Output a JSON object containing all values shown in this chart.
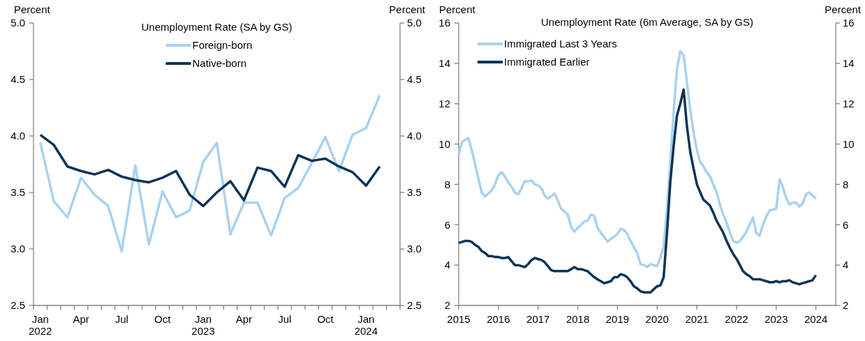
{
  "chart_data": [
    {
      "type": "line",
      "title": "Unemployment Rate (SA by GS)",
      "ylabel": "Percent",
      "y2label": "Percent",
      "legend": "top",
      "grid": false,
      "marker": "none",
      "line_style": "solid",
      "categories": [
        "Jan\n2022",
        null,
        null,
        "Apr",
        null,
        null,
        "Jul",
        null,
        null,
        "Oct",
        null,
        null,
        "Jan\n2023",
        null,
        null,
        "Apr",
        null,
        null,
        "Jul",
        null,
        null,
        "Oct",
        null,
        null,
        "Jan\n2024",
        null,
        null
      ],
      "series": [
        {
          "name": "Foreign-born",
          "color": "#a9d1f0",
          "values": [
            3.94,
            3.42,
            3.28,
            3.63,
            3.48,
            3.38,
            2.98,
            3.74,
            3.04,
            3.51,
            3.28,
            3.34,
            3.77,
            3.94,
            3.13,
            3.41,
            3.41,
            3.12,
            3.45,
            3.54,
            3.76,
            3.99,
            3.69,
            4.01,
            4.07,
            4.36,
            null
          ]
        },
        {
          "name": "Native-born",
          "color": "#0b3358",
          "values": [
            4.01,
            3.92,
            3.73,
            3.69,
            3.66,
            3.7,
            3.64,
            3.61,
            3.59,
            3.63,
            3.69,
            3.48,
            3.38,
            3.5,
            3.6,
            3.43,
            3.72,
            3.69,
            3.55,
            3.83,
            3.78,
            3.8,
            3.73,
            3.68,
            3.56,
            3.73,
            null
          ]
        }
      ],
      "ylim": [
        2.5,
        5.0
      ],
      "yticks": [
        {
          "value": 2.5,
          "label": "2.5"
        },
        {
          "value": 3,
          "label": "3.0"
        },
        {
          "value": 3.5,
          "label": "3.5"
        },
        {
          "value": 4,
          "label": "4.0"
        },
        {
          "value": 4.5,
          "label": "4.5"
        },
        {
          "value": 5,
          "label": "5.0"
        }
      ],
      "y2lim": [
        2.5,
        5.0
      ],
      "y2ticks": [
        {
          "value": 2.5,
          "label": "2.5"
        },
        {
          "value": 3,
          "label": "3.0"
        },
        {
          "value": 3.5,
          "label": "3.5"
        },
        {
          "value": 4,
          "label": "4.0"
        },
        {
          "value": 4.5,
          "label": "4.5"
        },
        {
          "value": 5,
          "label": "5.0"
        }
      ]
    },
    {
      "type": "line",
      "title": "Unemployment Rate (6m Average, SA by GS)",
      "ylabel": "Percent",
      "y2label": "Percent",
      "legend": "top left",
      "grid": false,
      "marker": "none",
      "line_style": "solid",
      "x": [
        "2015-01",
        "2015-02",
        "2015-03",
        "2015-04",
        "2015-05",
        "2015-06",
        "2015-07",
        "2015-08",
        "2015-09",
        "2015-10",
        "2015-11",
        "2015-12",
        "2016-01",
        "2016-02",
        "2016-03",
        "2016-04",
        "2016-05",
        "2016-06",
        "2016-07",
        "2016-08",
        "2016-09",
        "2016-10",
        "2016-11",
        "2016-12",
        "2017-01",
        "2017-02",
        "2017-03",
        "2017-04",
        "2017-05",
        "2017-06",
        "2017-07",
        "2017-08",
        "2017-09",
        "2017-10",
        "2017-11",
        "2017-12",
        "2018-01",
        "2018-02",
        "2018-03",
        "2018-04",
        "2018-05",
        "2018-06",
        "2018-07",
        "2018-08",
        "2018-09",
        "2018-10",
        "2018-11",
        "2018-12",
        "2019-01",
        "2019-02",
        "2019-03",
        "2019-04",
        "2019-05",
        "2019-06",
        "2019-07",
        "2019-08",
        "2019-09",
        "2019-10",
        "2019-11",
        "2019-12",
        "2020-01",
        "2020-02",
        "2020-03",
        "2020-04",
        "2020-05",
        "2020-06",
        "2020-07",
        "2020-08",
        "2020-09",
        "2020-10",
        "2020-11",
        "2020-12",
        "2021-01",
        "2021-02",
        "2021-03",
        "2021-04",
        "2021-05",
        "2021-06",
        "2021-07",
        "2021-08",
        "2021-09",
        "2021-10",
        "2021-11",
        "2021-12",
        "2022-01",
        "2022-02",
        "2022-03",
        "2022-04",
        "2022-05",
        "2022-06",
        "2022-07",
        "2022-08",
        "2022-09",
        "2022-10",
        "2022-11",
        "2022-12",
        "2023-01",
        "2023-02",
        "2023-03",
        "2023-04",
        "2023-05",
        "2023-06",
        "2023-07",
        "2023-08",
        "2023-09",
        "2023-10",
        "2023-11",
        "2023-12",
        "2024-01"
      ],
      "series": [
        {
          "name": "Immigrated Last 3 Years",
          "color": "#a9d1f0",
          "values": [
            9.5,
            10.1,
            10.2,
            10.3,
            9.7,
            9.0,
            8.3,
            7.6,
            7.4,
            7.55,
            7.7,
            8.0,
            8.45,
            8.6,
            8.4,
            8.1,
            7.9,
            7.6,
            7.5,
            7.8,
            8.15,
            8.15,
            8.2,
            8.0,
            7.95,
            7.8,
            7.45,
            7.3,
            7.4,
            7.55,
            7.2,
            6.8,
            6.65,
            6.5,
            5.9,
            5.65,
            5.85,
            6.0,
            6.15,
            6.2,
            6.5,
            6.45,
            5.85,
            5.6,
            5.4,
            5.15,
            5.3,
            5.4,
            5.55,
            5.8,
            5.75,
            5.55,
            5.2,
            4.9,
            4.6,
            4.05,
            4.0,
            3.9,
            4.05,
            4.0,
            3.95,
            4.4,
            4.9,
            6.8,
            9.1,
            11.6,
            13.7,
            14.6,
            14.4,
            13.1,
            11.7,
            10.6,
            9.7,
            9.1,
            8.9,
            8.6,
            8.4,
            8.0,
            7.6,
            7.0,
            6.5,
            6.1,
            5.6,
            5.2,
            5.1,
            5.2,
            5.4,
            5.65,
            6.0,
            6.35,
            5.6,
            5.45,
            6.0,
            6.4,
            6.7,
            6.75,
            6.8,
            8.25,
            7.9,
            7.35,
            7.0,
            7.1,
            7.1,
            6.9,
            7.05,
            7.5,
            7.6,
            7.45,
            7.3
          ]
        },
        {
          "name": "Immigrated Earlier",
          "color": "#0b3358",
          "values": [
            5.1,
            5.15,
            5.2,
            5.2,
            5.15,
            5.0,
            4.9,
            4.7,
            4.6,
            4.45,
            4.45,
            4.4,
            4.4,
            4.35,
            4.35,
            4.4,
            4.2,
            4.0,
            4.0,
            3.95,
            3.9,
            4.05,
            4.25,
            4.35,
            4.3,
            4.25,
            4.15,
            3.95,
            3.75,
            3.7,
            3.7,
            3.7,
            3.7,
            3.7,
            3.8,
            3.9,
            3.8,
            3.8,
            3.75,
            3.7,
            3.55,
            3.4,
            3.3,
            3.2,
            3.1,
            3.15,
            3.2,
            3.4,
            3.4,
            3.55,
            3.5,
            3.4,
            3.2,
            2.95,
            2.85,
            2.7,
            2.65,
            2.65,
            2.65,
            2.8,
            2.95,
            3.0,
            3.4,
            5.6,
            8.1,
            9.9,
            11.4,
            12.0,
            12.7,
            10.9,
            9.6,
            8.8,
            8.0,
            7.6,
            7.25,
            7.1,
            6.95,
            6.6,
            6.2,
            5.9,
            5.6,
            5.2,
            4.85,
            4.55,
            4.3,
            4.0,
            3.7,
            3.55,
            3.45,
            3.3,
            3.3,
            3.3,
            3.25,
            3.2,
            3.15,
            3.15,
            3.2,
            3.15,
            3.2,
            3.2,
            3.25,
            3.15,
            3.1,
            3.05,
            3.1,
            3.15,
            3.2,
            3.25,
            3.5
          ]
        }
      ],
      "xlim": [
        "2015-01-01",
        "2024-07-01"
      ],
      "xticks": [
        {
          "value": "2015-01-01",
          "label": "2015"
        },
        {
          "value": "2016-01-01",
          "label": "2016"
        },
        {
          "value": "2017-01-01",
          "label": "2017"
        },
        {
          "value": "2018-01-01",
          "label": "2018"
        },
        {
          "value": "2019-01-01",
          "label": "2019"
        },
        {
          "value": "2020-01-01",
          "label": "2020"
        },
        {
          "value": "2021-01-01",
          "label": "2021"
        },
        {
          "value": "2022-01-01",
          "label": "2022"
        },
        {
          "value": "2023-01-01",
          "label": "2023"
        },
        {
          "value": "2024-01-01",
          "label": "2024"
        }
      ],
      "ylim": [
        2,
        16
      ],
      "yticks": [
        2,
        4,
        6,
        8,
        10,
        12,
        14,
        16
      ],
      "y2lim": [
        2,
        16
      ],
      "y2ticks": [
        2,
        4,
        6,
        8,
        10,
        12,
        14,
        16
      ]
    }
  ]
}
